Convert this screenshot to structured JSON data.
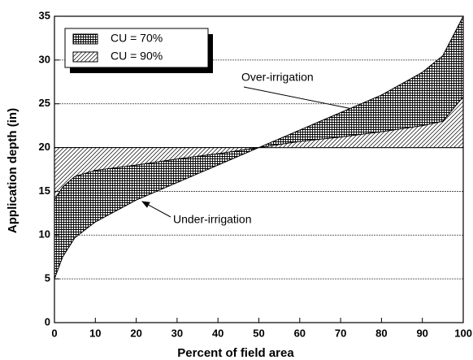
{
  "chart_data": {
    "type": "area",
    "x_label": "Percent of field area",
    "y_label": "Application depth (in)",
    "xlim": [
      0,
      100
    ],
    "xticks": [
      0,
      10,
      20,
      30,
      40,
      50,
      60,
      70,
      80,
      90,
      100
    ],
    "ylim": [
      0,
      35
    ],
    "yticks": [
      0,
      5,
      10,
      15,
      20,
      25,
      30,
      35
    ],
    "grid": true,
    "legend": "top-left",
    "baseline": 20,
    "x": [
      0,
      2,
      5,
      10,
      20,
      30,
      40,
      50,
      60,
      70,
      80,
      90,
      95,
      100
    ],
    "series": [
      {
        "name": "CU = 70%",
        "color": "#000000",
        "pattern": "crosshatch",
        "values": [
          5,
          7.5,
          9.7,
          11.5,
          14,
          16,
          18,
          20,
          22,
          24,
          26,
          28.6,
          30.5,
          35
        ]
      },
      {
        "name": "CU = 90%",
        "color": "#000000",
        "pattern": "hatch",
        "values": [
          14,
          15.5,
          16.7,
          17.4,
          18,
          18.7,
          19.3,
          20,
          20.7,
          21.2,
          21.8,
          22.5,
          23,
          25.8
        ]
      }
    ],
    "annotations": [
      "Over-irrigation",
      "Under-irrigation"
    ]
  }
}
